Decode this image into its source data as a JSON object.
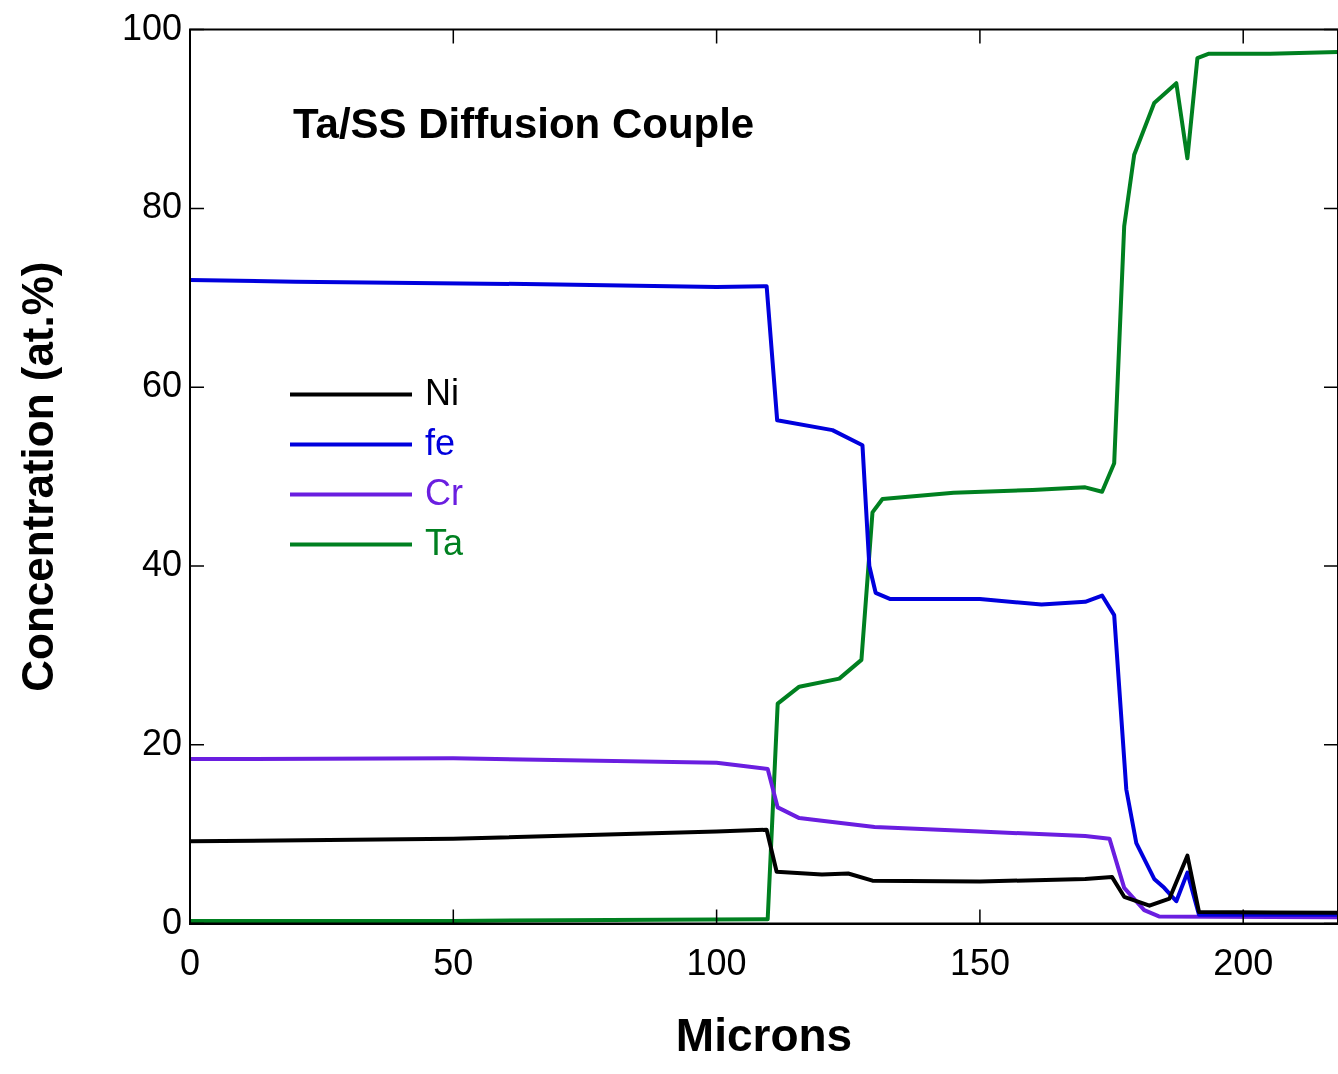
{
  "chart_data": {
    "type": "line",
    "title": "Ta/SS Diffusion Couple",
    "xlabel": "Microns",
    "ylabel": "Concentration (at.%)",
    "xlim": [
      0,
      218
    ],
    "xticks": [
      0,
      50,
      100,
      150,
      200
    ],
    "ylim": [
      0,
      100
    ],
    "yticks": [
      0,
      20,
      40,
      60,
      80,
      100
    ],
    "grid": false,
    "legend": "left",
    "marker": "none",
    "line_style": "solid",
    "series": [
      {
        "name": "Ni",
        "color": "#000000",
        "x": [
          0,
          50,
          100,
          109.5,
          111.4,
          120,
          125,
          129.6,
          150,
          170,
          175.1,
          177.4,
          182.2,
          186,
          189.4,
          191.6,
          218
        ],
        "values": [
          9.2,
          9.5,
          10.3,
          10.5,
          5.8,
          5.5,
          5.6,
          4.8,
          4.7,
          5,
          5.2,
          3,
          2,
          2.8,
          7.6,
          1.3,
          1.2
        ]
      },
      {
        "name": "fe",
        "color": "#0000dd",
        "x": [
          0,
          20,
          70,
          100,
          109.5,
          111.5,
          122,
          127.7,
          129,
          130.2,
          133,
          150,
          161.7,
          170,
          173.2,
          175.5,
          177.8,
          179.7,
          183.1,
          185,
          187.3,
          189.4,
          191.6,
          218
        ],
        "values": [
          72,
          71.8,
          71.5,
          71.2,
          71.3,
          56.3,
          55.2,
          53.5,
          40,
          37,
          36.3,
          36.3,
          35.7,
          36,
          36.7,
          34.5,
          15,
          9,
          5,
          4,
          2.5,
          5.7,
          1,
          1
        ]
      },
      {
        "name": "Cr",
        "color": "#6a1ee0",
        "x": [
          0,
          50,
          100,
          109.7,
          111.6,
          115.7,
          120,
          130,
          150,
          170,
          174.6,
          177.4,
          181.2,
          184,
          218
        ],
        "values": [
          18.4,
          18.5,
          18,
          17.3,
          13,
          11.8,
          11.5,
          10.8,
          10.3,
          9.8,
          9.5,
          4,
          1.5,
          0.8,
          0.7
        ]
      },
      {
        "name": "Ta",
        "color": "#008020",
        "x": [
          0,
          50,
          109.7,
          111.6,
          115.7,
          123.3,
          127.5,
          129.6,
          131.5,
          145,
          160,
          170,
          173.2,
          175.5,
          177.4,
          179.3,
          183.1,
          187.3,
          189.4,
          191.3,
          193.5,
          205,
          218
        ],
        "values": [
          0.3,
          0.3,
          0.5,
          24.6,
          26.5,
          27.4,
          29.5,
          46,
          47.5,
          48.2,
          48.5,
          48.8,
          48.3,
          51.5,
          78,
          86,
          91.8,
          94,
          85.6,
          96.8,
          97.3,
          97.3,
          97.5
        ]
      }
    ]
  }
}
